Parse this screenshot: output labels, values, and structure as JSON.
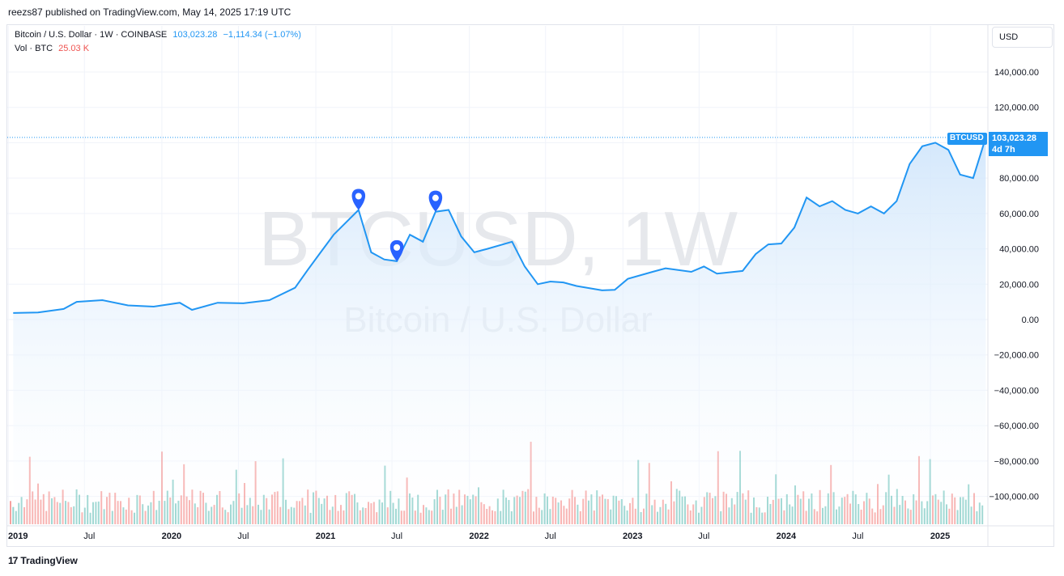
{
  "header": {
    "publish_line": "reezs87 published on TradingView.com, May 14, 2025 17:19 UTC"
  },
  "legend": {
    "symbol": "Bitcoin / U.S. Dollar · 1W · COINBASE",
    "price": "103,023.28",
    "change": "−1,114.34 (−1.07%)",
    "vol_label": "Vol · BTC",
    "vol_value": "25.03 K"
  },
  "currency": "USD",
  "watermark": {
    "line1": "BTCUSD, 1W",
    "line2": "Bitcoin / U.S. Dollar"
  },
  "price_tag": {
    "symbol": "BTCUSD",
    "price": "103,023.28",
    "countdown": "4d 7h"
  },
  "footer": {
    "brand": "TradingView",
    "logo_glyph": "17"
  },
  "colors": {
    "line": "#2196f3",
    "area": "#e3f0fc",
    "vol_up": "#26a69a",
    "vol_down": "#ef5350",
    "marker": "#2962ff"
  },
  "chart_data": {
    "type": "area",
    "y_ticks": [
      "140,000.00",
      "120,000.00",
      "100,000.00",
      "80,000.00",
      "60,000.00",
      "40,000.00",
      "20,000.00",
      "0.00",
      "−20,000.00",
      "−40,000.00",
      "−60,000.00",
      "−80,000.00",
      "−100,000.00"
    ],
    "ylim": [
      -110000,
      150000
    ],
    "x_ticks": [
      "2019",
      "Jul",
      "2020",
      "Jul",
      "2021",
      "Jul",
      "2022",
      "Jul",
      "2023",
      "Jul",
      "2024",
      "Jul",
      "2025"
    ],
    "series": [
      {
        "x": [
          "2019-01",
          "2019-03",
          "2019-05",
          "2019-06",
          "2019-08",
          "2019-10",
          "2019-12",
          "2020-02",
          "2020-03",
          "2020-05",
          "2020-07",
          "2020-09",
          "2020-11",
          "2020-12",
          "2021-01",
          "2021-02",
          "2021-04",
          "2021-05",
          "2021-06",
          "2021-07",
          "2021-08",
          "2021-09",
          "2021-10",
          "2021-11",
          "2021-12",
          "2022-01",
          "2022-02",
          "2022-04",
          "2022-05",
          "2022-06",
          "2022-07",
          "2022-08",
          "2022-09",
          "2022-11",
          "2022-12",
          "2023-01",
          "2023-03",
          "2023-04",
          "2023-06",
          "2023-07",
          "2023-08",
          "2023-10",
          "2023-11",
          "2023-12",
          "2024-01",
          "2024-02",
          "2024-03",
          "2024-04",
          "2024-05",
          "2024-06",
          "2024-07",
          "2024-08",
          "2024-09",
          "2024-10",
          "2024-11",
          "2024-12",
          "2025-01",
          "2025-02",
          "2025-03",
          "2025-04",
          "2025-05"
        ],
        "y": [
          3700,
          4000,
          6000,
          10000,
          11000,
          8000,
          7300,
          9500,
          5500,
          9500,
          9200,
          11000,
          18000,
          28000,
          38000,
          48000,
          62000,
          38000,
          34000,
          33000,
          48000,
          44000,
          61000,
          62000,
          47000,
          38000,
          40000,
          44000,
          30000,
          20000,
          21500,
          21000,
          19000,
          16500,
          16800,
          23000,
          27000,
          29000,
          27000,
          30000,
          26000,
          27500,
          37000,
          42500,
          43000,
          52000,
          69000,
          64000,
          67000,
          62000,
          60000,
          64000,
          60000,
          67000,
          88000,
          98000,
          100000,
          96000,
          82000,
          80000,
          103000
        ]
      }
    ],
    "markers": [
      "2021-04",
      "2021-07",
      "2021-10"
    ]
  }
}
